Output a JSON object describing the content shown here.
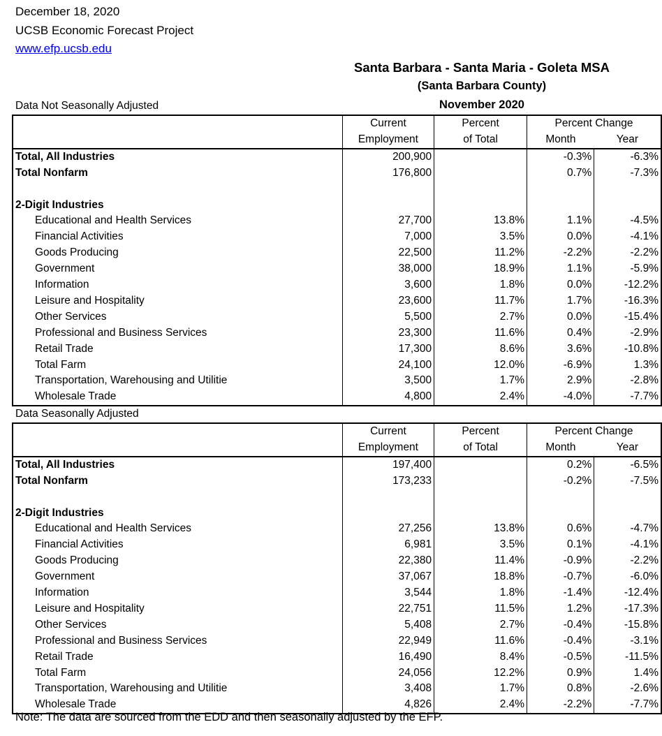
{
  "header": {
    "date": "December 18, 2020",
    "org": "UCSB Economic Forecast Project",
    "url": "www.efp.ucsb.edu"
  },
  "report": {
    "title": "Santa Barbara - Santa Maria - Goleta MSA",
    "subtitle": "(Santa Barbara County)",
    "period": "November 2020"
  },
  "columns": {
    "employment_line1": "Current",
    "employment_line2": "Employment",
    "percent_line1": "Percent",
    "percent_line2": "of Total",
    "change_line1": "Percent Change",
    "month": "Month",
    "year": "Year"
  },
  "nsa": {
    "label": "Data Not Seasonally Adjusted",
    "totals": [
      {
        "name": "Total, All Industries",
        "emp": "200,900",
        "pct": "",
        "month": "-0.3%",
        "year": "-6.3%"
      },
      {
        "name": "Total Nonfarm",
        "emp": "176,800",
        "pct": "",
        "month": "0.7%",
        "year": "-7.3%"
      }
    ],
    "group_label": "2-Digit Industries",
    "rows": [
      {
        "name": "Educational and Health Services",
        "emp": "27,700",
        "pct": "13.8%",
        "month": "1.1%",
        "year": "-4.5%"
      },
      {
        "name": "Financial Activities",
        "emp": "7,000",
        "pct": "3.5%",
        "month": "0.0%",
        "year": "-4.1%"
      },
      {
        "name": "Goods Producing",
        "emp": "22,500",
        "pct": "11.2%",
        "month": "-2.2%",
        "year": "-2.2%"
      },
      {
        "name": "Government",
        "emp": "38,000",
        "pct": "18.9%",
        "month": "1.1%",
        "year": "-5.9%"
      },
      {
        "name": "Information",
        "emp": "3,600",
        "pct": "1.8%",
        "month": "0.0%",
        "year": "-12.2%"
      },
      {
        "name": "Leisure and Hospitality",
        "emp": "23,600",
        "pct": "11.7%",
        "month": "1.7%",
        "year": "-16.3%"
      },
      {
        "name": "Other Services",
        "emp": "5,500",
        "pct": "2.7%",
        "month": "0.0%",
        "year": "-15.4%"
      },
      {
        "name": "Professional and Business Services",
        "emp": "23,300",
        "pct": "11.6%",
        "month": "0.4%",
        "year": "-2.9%"
      },
      {
        "name": "Retail Trade",
        "emp": "17,300",
        "pct": "8.6%",
        "month": "3.6%",
        "year": "-10.8%"
      },
      {
        "name": "Total Farm",
        "emp": "24,100",
        "pct": "12.0%",
        "month": "-6.9%",
        "year": "1.3%"
      },
      {
        "name": "Transportation, Warehousing and Utilitie",
        "emp": "3,500",
        "pct": "1.7%",
        "month": "2.9%",
        "year": "-2.8%"
      },
      {
        "name": "Wholesale Trade",
        "emp": "4,800",
        "pct": "2.4%",
        "month": "-4.0%",
        "year": "-7.7%"
      }
    ]
  },
  "sa": {
    "label": "Data Seasonally Adjusted",
    "totals": [
      {
        "name": "Total, All Industries",
        "emp": "197,400",
        "pct": "",
        "month": "0.2%",
        "year": "-6.5%"
      },
      {
        "name": "Total Nonfarm",
        "emp": "173,233",
        "pct": "",
        "month": "-0.2%",
        "year": "-7.5%"
      }
    ],
    "group_label": "2-Digit Industries",
    "rows": [
      {
        "name": "Educational and Health Services",
        "emp": "27,256",
        "pct": "13.8%",
        "month": "0.6%",
        "year": "-4.7%"
      },
      {
        "name": "Financial Activities",
        "emp": "6,981",
        "pct": "3.5%",
        "month": "0.1%",
        "year": "-4.1%"
      },
      {
        "name": "Goods Producing",
        "emp": "22,380",
        "pct": "11.4%",
        "month": "-0.9%",
        "year": "-2.2%"
      },
      {
        "name": "Government",
        "emp": "37,067",
        "pct": "18.8%",
        "month": "-0.7%",
        "year": "-6.0%"
      },
      {
        "name": "Information",
        "emp": "3,544",
        "pct": "1.8%",
        "month": "-1.4%",
        "year": "-12.4%"
      },
      {
        "name": "Leisure and Hospitality",
        "emp": "22,751",
        "pct": "11.5%",
        "month": "1.2%",
        "year": "-17.3%"
      },
      {
        "name": "Other Services",
        "emp": "5,408",
        "pct": "2.7%",
        "month": "-0.4%",
        "year": "-15.8%"
      },
      {
        "name": "Professional and Business Services",
        "emp": "22,949",
        "pct": "11.6%",
        "month": "-0.4%",
        "year": "-3.1%"
      },
      {
        "name": "Retail Trade",
        "emp": "16,490",
        "pct": "8.4%",
        "month": "-0.5%",
        "year": "-11.5%"
      },
      {
        "name": "Total Farm",
        "emp": "24,056",
        "pct": "12.2%",
        "month": "0.9%",
        "year": "1.4%"
      },
      {
        "name": "Transportation, Warehousing and Utilitie",
        "emp": "3,408",
        "pct": "1.7%",
        "month": "0.8%",
        "year": "-2.6%"
      },
      {
        "name": "Wholesale Trade",
        "emp": "4,826",
        "pct": "2.4%",
        "month": "-2.2%",
        "year": "-7.7%"
      }
    ]
  },
  "note": "Note: The data are sourced from the EDD and then seasonally adjusted by the EFP."
}
